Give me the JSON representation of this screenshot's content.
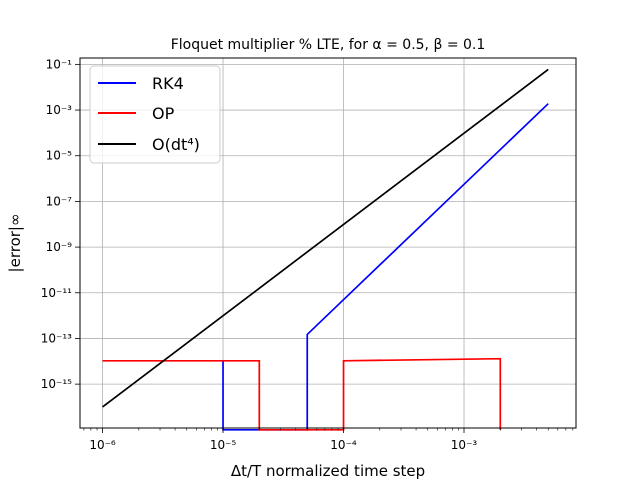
{
  "chart_data": {
    "type": "line",
    "title": "Floquet multiplier % LTE, for α = 0.5, β = 0.1",
    "xlabel": "Δt/T normalized time step",
    "ylabel": "|error|∞",
    "xscale": "log",
    "yscale": "log",
    "xlim": [
      6.5e-07,
      0.0085
    ],
    "ylim": [
      1.2e-17,
      0.19
    ],
    "grid": true,
    "legend": "top-left",
    "xticks": [
      {
        "value": 1e-06,
        "label": "10⁻⁶"
      },
      {
        "value": 1e-05,
        "label": "10⁻⁵"
      },
      {
        "value": 0.0001,
        "label": "10⁻⁴"
      },
      {
        "value": 0.001,
        "label": "10⁻³"
      }
    ],
    "yticks": [
      {
        "value": 1e-15,
        "label": "10⁻¹⁵"
      },
      {
        "value": 1e-13,
        "label": "10⁻¹³"
      },
      {
        "value": 1e-11,
        "label": "10⁻¹¹"
      },
      {
        "value": 1e-09,
        "label": "10⁻⁹"
      },
      {
        "value": 1e-07,
        "label": "10⁻⁷"
      },
      {
        "value": 1e-05,
        "label": "10⁻⁵"
      },
      {
        "value": 0.001,
        "label": "10⁻³"
      },
      {
        "value": 0.1,
        "label": "10⁻¹"
      }
    ],
    "series": [
      {
        "name": "RK4",
        "color": "#0000ff",
        "points": [
          [
            1e-05,
            1e-14
          ],
          [
            1e-05,
            1e-17
          ],
          [
            5e-05,
            1e-17
          ],
          [
            5e-05,
            1.5e-13
          ],
          [
            0.005,
            0.0019
          ]
        ]
      },
      {
        "name": "OP",
        "color": "#ff0000",
        "points": [
          [
            1e-06,
            1.05e-14
          ],
          [
            2e-05,
            1.05e-14
          ],
          [
            2e-05,
            1e-17
          ],
          [
            0.0001,
            1e-17
          ],
          [
            0.0001,
            1.05e-14
          ],
          [
            0.002,
            1.3e-14
          ],
          [
            0.002,
            1e-17
          ]
        ]
      },
      {
        "name": "O(dt⁴)",
        "color": "#000000",
        "points": [
          [
            1e-06,
            1e-16
          ],
          [
            0.005,
            0.06
          ]
        ]
      }
    ]
  }
}
